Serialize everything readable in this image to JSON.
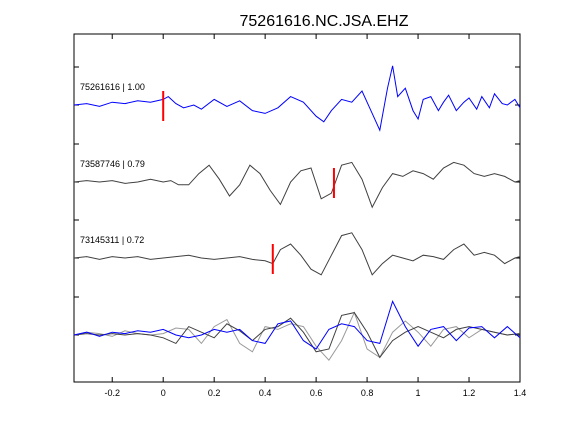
{
  "chart_data": {
    "type": "line",
    "title": "75261616.NC.JSA.EHZ",
    "xlabel": "",
    "ylabel": "",
    "xlim": [
      -0.35,
      1.4
    ],
    "grid": false,
    "x_ticks": [
      "-0.2",
      "0",
      "0.2",
      "0.4",
      "0.6",
      "0.8",
      "1",
      "1.2",
      "1.4"
    ],
    "x_tick_values": [
      -0.2,
      0,
      0.2,
      0.4,
      0.6,
      0.8,
      1.0,
      1.2,
      1.4
    ],
    "y_ticks_per_trace": 2,
    "colors": {
      "template": "#0000ff",
      "match": "#404040",
      "overlay_gray": "#9a9a9a",
      "pick": "#ff0000"
    },
    "series": [
      {
        "label": "75261616 | 1.00",
        "color": "#0000ff",
        "pick": 0.0,
        "x": [
          -0.35,
          -0.3,
          -0.25,
          -0.2,
          -0.15,
          -0.1,
          -0.05,
          0.0,
          0.02,
          0.05,
          0.08,
          0.12,
          0.15,
          0.2,
          0.25,
          0.3,
          0.35,
          0.4,
          0.45,
          0.5,
          0.55,
          0.6,
          0.63,
          0.66,
          0.7,
          0.74,
          0.78,
          0.82,
          0.85,
          0.88,
          0.9,
          0.92,
          0.95,
          0.98,
          1.0,
          1.02,
          1.05,
          1.08,
          1.1,
          1.12,
          1.15,
          1.18,
          1.2,
          1.23,
          1.25,
          1.28,
          1.3,
          1.33,
          1.35,
          1.38,
          1.4
        ],
        "y": [
          0.0,
          0.05,
          -0.05,
          0.1,
          0.05,
          0.15,
          0.1,
          0.2,
          0.3,
          0.05,
          -0.1,
          0.0,
          -0.15,
          0.2,
          -0.05,
          0.15,
          -0.2,
          -0.3,
          -0.1,
          0.3,
          0.1,
          -0.4,
          -0.6,
          -0.2,
          0.2,
          0.1,
          0.5,
          -0.3,
          -0.9,
          0.6,
          1.4,
          0.3,
          0.6,
          -0.2,
          -0.5,
          0.2,
          0.3,
          -0.2,
          0.1,
          0.35,
          -0.2,
          0.1,
          0.25,
          -0.15,
          0.3,
          -0.1,
          0.4,
          0.05,
          0.0,
          0.2,
          -0.1
        ]
      },
      {
        "label": "73587746 | 0.79",
        "color": "#404040",
        "pick": 0.67,
        "x": [
          -0.35,
          -0.3,
          -0.25,
          -0.2,
          -0.15,
          -0.1,
          -0.05,
          0.0,
          0.03,
          0.06,
          0.1,
          0.14,
          0.18,
          0.22,
          0.26,
          0.3,
          0.34,
          0.38,
          0.42,
          0.46,
          0.5,
          0.54,
          0.58,
          0.62,
          0.66,
          0.7,
          0.74,
          0.78,
          0.82,
          0.86,
          0.9,
          0.94,
          0.98,
          1.02,
          1.06,
          1.1,
          1.14,
          1.18,
          1.22,
          1.26,
          1.3,
          1.34,
          1.38,
          1.4
        ],
        "y": [
          0.0,
          0.05,
          0.0,
          0.05,
          -0.05,
          0.0,
          0.1,
          0.0,
          0.05,
          -0.1,
          -0.1,
          0.3,
          0.6,
          0.1,
          -0.5,
          -0.1,
          0.6,
          0.3,
          -0.3,
          -0.8,
          0.0,
          0.4,
          0.5,
          -0.6,
          -0.4,
          0.6,
          0.7,
          0.1,
          -0.9,
          -0.2,
          0.3,
          0.2,
          0.4,
          0.3,
          0.1,
          0.5,
          0.7,
          0.6,
          0.3,
          0.2,
          0.3,
          0.2,
          0.0,
          0.05
        ]
      },
      {
        "label": "73145311 | 0.72",
        "color": "#404040",
        "pick": 0.43,
        "x": [
          -0.35,
          -0.3,
          -0.25,
          -0.2,
          -0.15,
          -0.1,
          -0.05,
          0.0,
          0.05,
          0.1,
          0.15,
          0.2,
          0.25,
          0.3,
          0.35,
          0.4,
          0.43,
          0.46,
          0.5,
          0.54,
          0.58,
          0.62,
          0.66,
          0.7,
          0.74,
          0.78,
          0.82,
          0.86,
          0.9,
          0.94,
          0.98,
          1.02,
          1.06,
          1.1,
          1.14,
          1.18,
          1.22,
          1.26,
          1.3,
          1.34,
          1.38,
          1.4
        ],
        "y": [
          0.0,
          0.05,
          -0.05,
          0.05,
          0.0,
          0.05,
          -0.05,
          0.0,
          0.05,
          0.1,
          0.0,
          -0.05,
          0.0,
          0.05,
          -0.05,
          -0.1,
          -0.2,
          0.3,
          0.5,
          0.1,
          -0.4,
          -0.6,
          0.1,
          0.8,
          0.9,
          0.3,
          -0.6,
          -0.2,
          0.1,
          0.0,
          -0.1,
          0.1,
          0.05,
          -0.05,
          0.3,
          0.5,
          0.1,
          0.2,
          0.1,
          -0.2,
          0.0,
          0.05
        ]
      },
      {
        "label": "",
        "color": "#9a9a9a",
        "overlay": true,
        "x": [
          -0.35,
          -0.3,
          -0.25,
          -0.2,
          -0.15,
          -0.1,
          -0.05,
          0.0,
          0.05,
          0.1,
          0.15,
          0.2,
          0.25,
          0.3,
          0.35,
          0.4,
          0.45,
          0.5,
          0.55,
          0.6,
          0.65,
          0.7,
          0.75,
          0.8,
          0.85,
          0.9,
          0.95,
          1.0,
          1.05,
          1.1,
          1.15,
          1.2,
          1.25,
          1.3,
          1.35,
          1.4
        ],
        "y": [
          0.0,
          0.1,
          0.05,
          -0.05,
          0.15,
          0.05,
          0.0,
          0.05,
          0.25,
          0.2,
          -0.3,
          0.3,
          0.55,
          -0.3,
          -0.6,
          0.3,
          0.2,
          0.4,
          0.3,
          -0.4,
          -0.9,
          -0.2,
          0.8,
          -0.5,
          -0.8,
          0.1,
          0.5,
          0.1,
          -0.4,
          0.2,
          0.3,
          -0.1,
          0.2,
          0.1,
          0.0,
          0.05
        ]
      },
      {
        "label": "",
        "color": "#404040",
        "overlay": true,
        "x": [
          -0.35,
          -0.3,
          -0.25,
          -0.2,
          -0.15,
          -0.1,
          -0.05,
          0.0,
          0.05,
          0.1,
          0.15,
          0.2,
          0.25,
          0.3,
          0.35,
          0.4,
          0.45,
          0.5,
          0.55,
          0.6,
          0.65,
          0.7,
          0.75,
          0.8,
          0.85,
          0.9,
          0.95,
          1.0,
          1.05,
          1.1,
          1.15,
          1.2,
          1.25,
          1.3,
          1.35,
          1.4
        ],
        "y": [
          0.0,
          0.05,
          0.0,
          0.05,
          0.0,
          0.05,
          0.0,
          -0.1,
          -0.3,
          0.3,
          0.1,
          -0.1,
          0.4,
          0.15,
          -0.2,
          0.2,
          0.3,
          0.6,
          0.1,
          -0.6,
          -0.5,
          0.7,
          0.8,
          0.1,
          -0.8,
          -0.2,
          0.1,
          0.3,
          0.1,
          -0.1,
          0.2,
          0.3,
          0.2,
          0.1,
          0.0,
          0.05
        ]
      },
      {
        "label": "",
        "color": "#0000ff",
        "overlay": true,
        "x": [
          -0.35,
          -0.3,
          -0.25,
          -0.2,
          -0.15,
          -0.1,
          -0.05,
          0.0,
          0.05,
          0.1,
          0.15,
          0.2,
          0.25,
          0.3,
          0.35,
          0.4,
          0.45,
          0.5,
          0.55,
          0.6,
          0.65,
          0.7,
          0.75,
          0.8,
          0.85,
          0.9,
          0.95,
          1.0,
          1.05,
          1.1,
          1.15,
          1.2,
          1.25,
          1.3,
          1.35,
          1.4
        ],
        "y": [
          0.0,
          0.1,
          -0.05,
          0.1,
          0.05,
          0.15,
          0.1,
          0.2,
          0.0,
          -0.1,
          0.0,
          0.2,
          0.1,
          0.2,
          -0.2,
          -0.3,
          0.4,
          0.5,
          -0.2,
          -0.5,
          0.2,
          0.4,
          0.3,
          -0.2,
          -0.3,
          1.2,
          0.3,
          -0.4,
          0.2,
          0.3,
          -0.2,
          0.25,
          0.3,
          -0.1,
          0.3,
          -0.1
        ]
      }
    ]
  }
}
